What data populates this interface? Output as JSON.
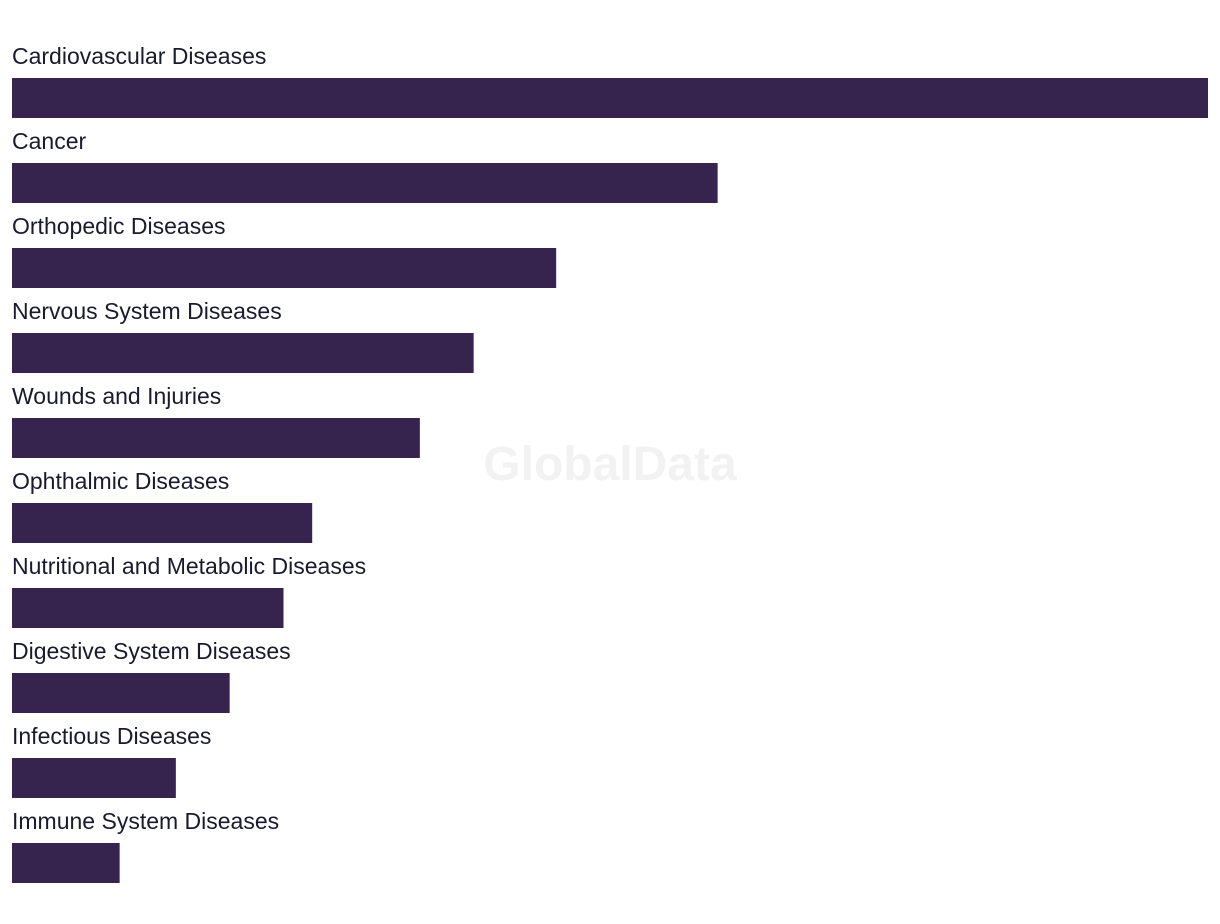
{
  "watermark": "GlobalData",
  "chart_data": {
    "type": "bar",
    "orientation": "horizontal",
    "categories": [
      "Cardiovascular Diseases",
      "Cancer",
      "Orthopedic Diseases",
      "Nervous System Diseases",
      "Wounds and Injuries",
      "Ophthalmic Diseases",
      "Nutritional and Metabolic Diseases",
      "Digestive System Diseases",
      "Infectious Diseases",
      "Immune System Diseases"
    ],
    "values": [
      1.0,
      0.59,
      0.455,
      0.386,
      0.341,
      0.251,
      0.227,
      0.182,
      0.137,
      0.09
    ],
    "value_scale": "relative (no axis or data labels shown)",
    "xlim": [
      0,
      1.0
    ],
    "bar_color": "#36244f",
    "label_color": "#1a1a2e",
    "grid": false,
    "legend": false,
    "title": "",
    "xlabel": "",
    "ylabel": ""
  }
}
